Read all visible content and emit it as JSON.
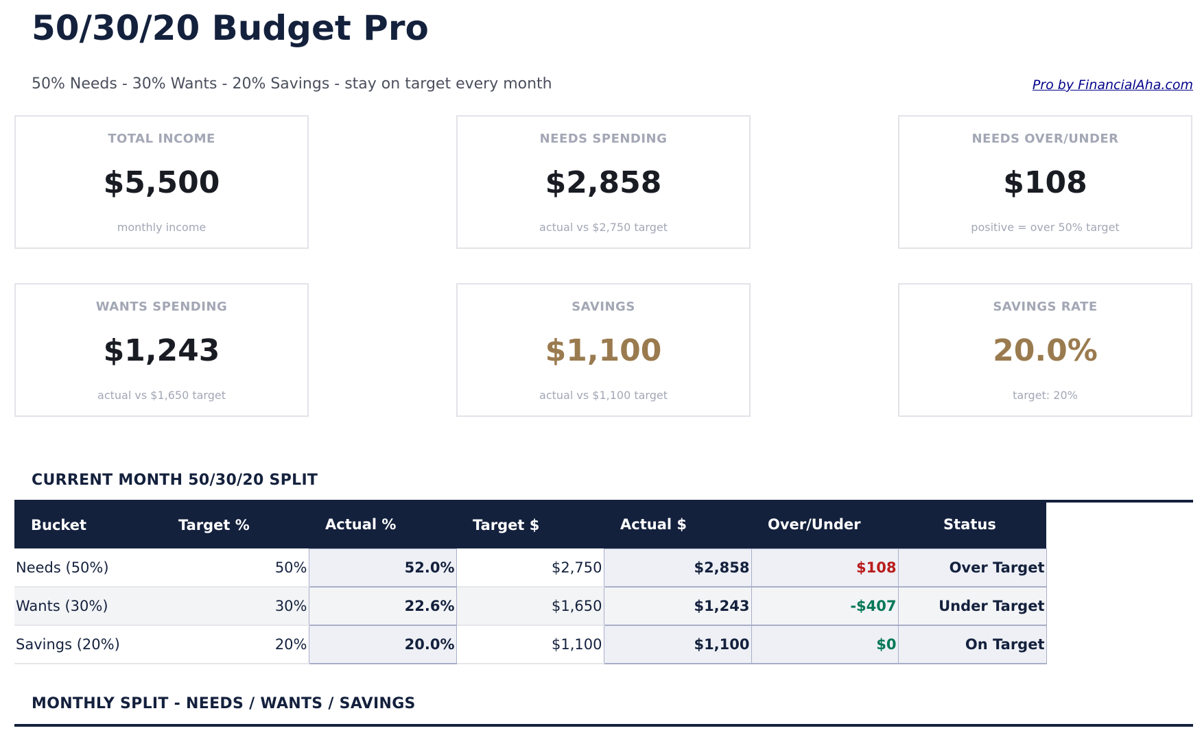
{
  "header": {
    "title": "50/30/20 Budget Pro",
    "subtitle": "50% Needs - 30% Wants - 20% Savings - stay on target every month",
    "link": "Pro by FinancialAha.com"
  },
  "cards": [
    {
      "label": "TOTAL INCOME",
      "value": "$5,500",
      "note": "monthly income"
    },
    {
      "label": "NEEDS SPENDING",
      "value": "$2,858",
      "note": "actual vs $2,750 target"
    },
    {
      "label": "NEEDS OVER/UNDER",
      "value": "$108",
      "note": "positive = over 50% target"
    },
    {
      "label": "WANTS SPENDING",
      "value": "$1,243",
      "note": "actual vs $1,650 target"
    },
    {
      "label": "SAVINGS",
      "value": "$1,100",
      "note": "actual vs $1,100 target"
    },
    {
      "label": "SAVINGS RATE",
      "value": "20.0%",
      "note": "target: 20%"
    }
  ],
  "split": {
    "heading": "CURRENT MONTH 50/30/20 SPLIT",
    "columns": [
      "Bucket",
      "Target %",
      "Actual %",
      "Target $",
      "Actual $",
      "Over/Under",
      "Status"
    ],
    "rows": [
      [
        "Needs (50%)",
        "50%",
        "52.0%",
        "$2,750",
        "$2,858",
        "$108",
        "Over Target"
      ],
      [
        "Wants (30%)",
        "30%",
        "22.6%",
        "$1,650",
        "$1,243",
        "-$407",
        "Under Target"
      ],
      [
        "Savings (20%)",
        "20%",
        "20.0%",
        "$1,100",
        "$1,100",
        "$0",
        "On Target"
      ]
    ]
  },
  "monthly": {
    "heading": "MONTHLY SPLIT - NEEDS / WANTS / SAVINGS"
  },
  "colors": {
    "navy": "#14213d",
    "gold": "#9a7b4f",
    "over": "#b91c1c",
    "under": "#047857"
  }
}
